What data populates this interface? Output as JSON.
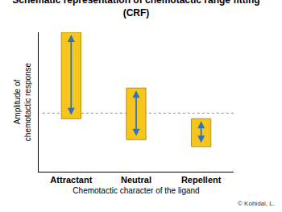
{
  "chart_data": {
    "type": "floating_bar",
    "title": "Schematic representation of chemotactic range fitting (CRF)",
    "x_label": "Chemotactic character of the ligand",
    "y_label": "Amplitude of chemotactic response",
    "categories": [
      "Attractant",
      "Neutral",
      "Repellent"
    ],
    "low": [
      38,
      23,
      18
    ],
    "high": [
      100,
      60,
      38
    ],
    "reference": 42,
    "color": "#f7c51e",
    "ylim": [
      0,
      100
    ],
    "yticks": [],
    "tick_labels": "x",
    "annotations": [
      "© Kohidai, L."
    ]
  }
}
